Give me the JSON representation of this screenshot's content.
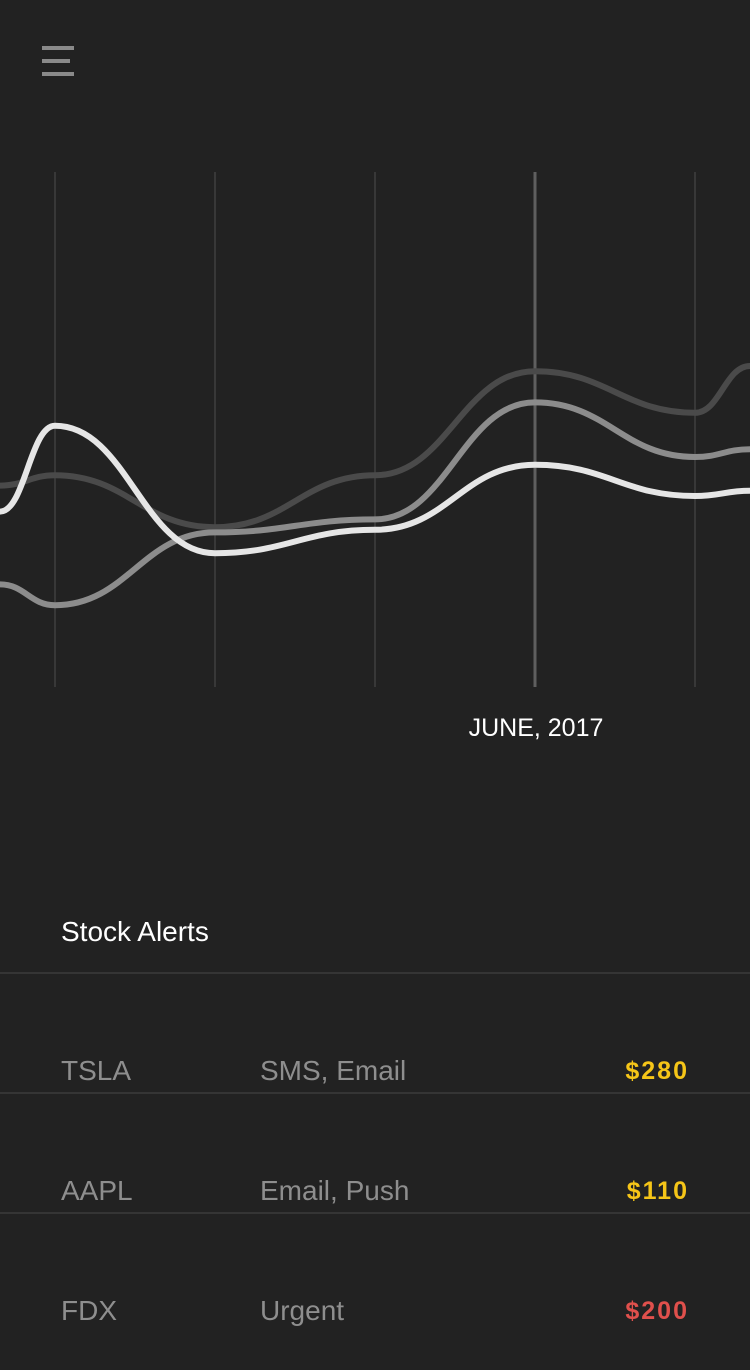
{
  "header": {
    "menu_icon": "hamburger-menu-icon"
  },
  "chart_data": {
    "type": "line",
    "highlight_label": "JUNE, 2017",
    "series": [
      {
        "values": [
          5.4,
          5.8,
          3.8,
          5.8,
          9.8,
          8.2,
          10.0
        ]
      },
      {
        "values": [
          1.6,
          0.8,
          3.6,
          4.1,
          8.6,
          6.5,
          6.8
        ]
      },
      {
        "values": [
          4.4,
          7.7,
          2.8,
          3.7,
          6.2,
          5.0,
          5.2
        ]
      }
    ],
    "colors": [
      "#4a4a4a",
      "#8c8c8c",
      "#e6e6e6"
    ],
    "gridline_color": "#383838",
    "highlight_color": "#5f5f5f"
  },
  "alerts": {
    "title": "Stock Alerts",
    "rows": [
      {
        "symbol": "TSLA",
        "channels": "SMS, Email",
        "price": "$280",
        "price_color": "#f5c518"
      },
      {
        "symbol": "AAPL",
        "channels": "Email, Push",
        "price": "$110",
        "price_color": "#f5c518"
      },
      {
        "symbol": "FDX",
        "channels": "Urgent",
        "price": "$200",
        "price_color": "#e0504c"
      }
    ]
  }
}
